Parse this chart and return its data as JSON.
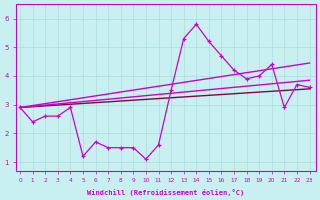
{
  "xlabel": "Windchill (Refroidissement éolien,°C)",
  "bg_color": "#c8f0f0",
  "line_color": "#cc00cc",
  "line_color2": "#880044",
  "xticks": [
    0,
    1,
    2,
    3,
    4,
    5,
    6,
    7,
    8,
    9,
    10,
    11,
    12,
    13,
    14,
    15,
    16,
    17,
    18,
    19,
    20,
    21,
    22,
    23
  ],
  "yticks": [
    1,
    2,
    3,
    4,
    5,
    6
  ],
  "xlim": [
    -0.3,
    23.5
  ],
  "ylim": [
    0.7,
    6.5
  ],
  "series1_x": [
    0,
    1,
    2,
    3,
    4,
    5,
    6,
    7,
    8,
    9,
    10,
    11,
    12,
    13,
    14,
    15,
    16,
    17,
    18,
    19,
    20,
    21,
    22,
    23
  ],
  "series1_y": [
    2.9,
    2.4,
    2.6,
    2.6,
    2.9,
    1.2,
    1.7,
    1.5,
    1.5,
    1.5,
    1.1,
    1.6,
    3.5,
    5.3,
    5.8,
    5.2,
    4.7,
    4.2,
    3.9,
    4.0,
    4.4,
    2.9,
    3.7,
    3.6
  ],
  "trend1_x": [
    0,
    23
  ],
  "trend1_y": [
    2.9,
    3.55
  ],
  "trend2_x": [
    0,
    23
  ],
  "trend2_y": [
    2.9,
    3.85
  ],
  "trend3_x": [
    0,
    23
  ],
  "trend3_y": [
    2.9,
    4.45
  ]
}
